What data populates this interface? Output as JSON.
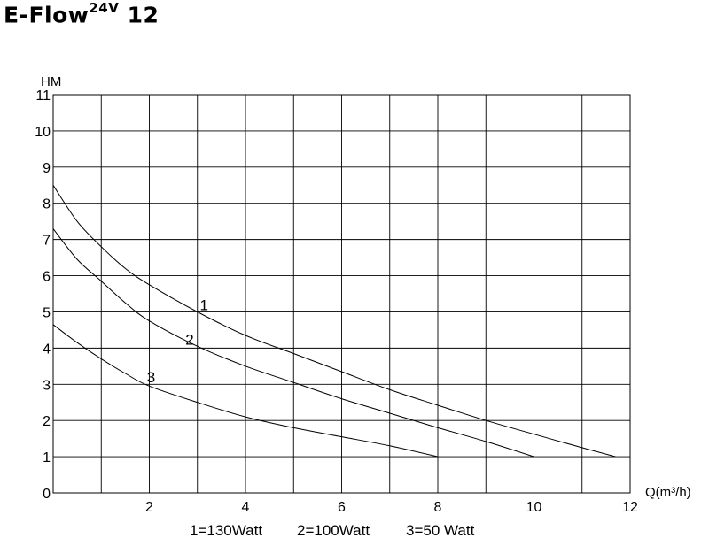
{
  "chart_data": {
    "type": "line",
    "title": {
      "main": "E-Flow",
      "sup": "24V",
      "rest": " 12"
    },
    "ylabel": "HM",
    "xlabel": "Q(m³/h)",
    "xlim": [
      0,
      12
    ],
    "ylim": [
      0,
      11
    ],
    "x_ticks": [
      2,
      4,
      6,
      8,
      10,
      12
    ],
    "y_ticks": [
      0,
      1,
      2,
      3,
      4,
      5,
      6,
      7,
      8,
      9,
      10,
      11
    ],
    "x_grid_step": 1,
    "y_grid_step": 1,
    "grid": true,
    "series": [
      {
        "name": "1",
        "x": [
          0,
          0.5,
          1,
          1.5,
          2,
          3,
          4,
          5,
          6,
          7,
          8,
          9,
          10,
          11,
          11.7
        ],
        "y": [
          8.5,
          7.5,
          6.8,
          6.2,
          5.75,
          5.0,
          4.35,
          3.85,
          3.35,
          2.85,
          2.42,
          2.0,
          1.62,
          1.25,
          1.0
        ]
      },
      {
        "name": "2",
        "x": [
          0,
          0.5,
          1,
          1.5,
          2,
          3,
          4,
          5,
          6,
          7,
          8,
          9,
          10
        ],
        "y": [
          7.3,
          6.45,
          5.85,
          5.25,
          4.75,
          4.05,
          3.5,
          3.05,
          2.6,
          2.2,
          1.8,
          1.42,
          1.0
        ]
      },
      {
        "name": "3",
        "x": [
          0,
          0.5,
          1,
          1.5,
          2,
          3,
          4,
          5,
          6,
          7,
          8
        ],
        "y": [
          4.65,
          4.15,
          3.7,
          3.3,
          2.95,
          2.5,
          2.1,
          1.8,
          1.55,
          1.3,
          1.0
        ]
      }
    ],
    "curve_labels": [
      {
        "text": "1",
        "x": 3.05,
        "y": 5.05
      },
      {
        "text": "2",
        "x": 2.75,
        "y": 4.1
      },
      {
        "text": "3",
        "x": 1.95,
        "y": 3.05
      }
    ],
    "legend": [
      "1=130Watt",
      "2=100Watt",
      "3=50 Watt"
    ],
    "legend_placement": "bottom"
  }
}
